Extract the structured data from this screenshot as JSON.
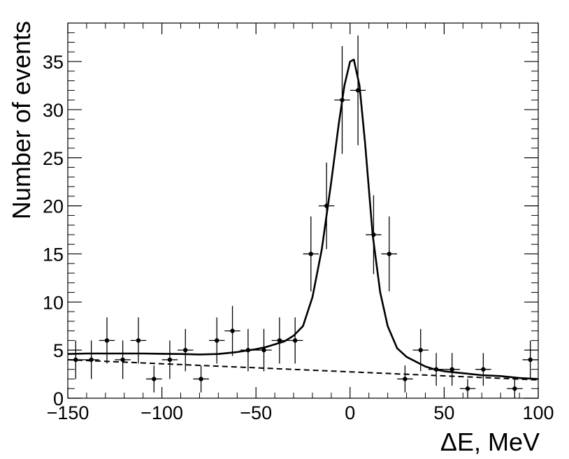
{
  "chart_data": {
    "type": "scatter",
    "xlabel": "ΔE, MeV",
    "ylabel": "Number of events",
    "xlim": [
      -150,
      100
    ],
    "ylim": [
      0,
      39
    ],
    "grid": false,
    "x_ticks": [
      -150,
      -100,
      -50,
      0,
      50,
      100
    ],
    "x_tick_labels": [
      "−150",
      "−100",
      "−50",
      "0",
      "50",
      "100"
    ],
    "y_ticks": [
      0,
      5,
      10,
      15,
      20,
      25,
      30,
      35
    ],
    "y_tick_labels": [
      "0",
      "5",
      "10",
      "15",
      "20",
      "25",
      "30",
      "35"
    ],
    "bin_half_width": 4.17,
    "points": [
      {
        "x": -145.8,
        "y": 4,
        "err_lo": 2.0,
        "err_hi": 2.0
      },
      {
        "x": -137.5,
        "y": 4,
        "err_lo": 2.0,
        "err_hi": 2.0
      },
      {
        "x": -129.2,
        "y": 6,
        "err_lo": 2.4,
        "err_hi": 2.4
      },
      {
        "x": -120.8,
        "y": 4,
        "err_lo": 2.0,
        "err_hi": 2.0
      },
      {
        "x": -112.5,
        "y": 6,
        "err_lo": 2.4,
        "err_hi": 2.4
      },
      {
        "x": -104.2,
        "y": 2,
        "err_lo": 1.4,
        "err_hi": 1.4
      },
      {
        "x": -95.8,
        "y": 4,
        "err_lo": 2.0,
        "err_hi": 2.0
      },
      {
        "x": -87.5,
        "y": 5,
        "err_lo": 2.2,
        "err_hi": 2.2
      },
      {
        "x": -79.2,
        "y": 2,
        "err_lo": 1.4,
        "err_hi": 1.4
      },
      {
        "x": -70.8,
        "y": 6,
        "err_lo": 2.4,
        "err_hi": 2.4
      },
      {
        "x": -62.5,
        "y": 7,
        "err_lo": 2.6,
        "err_hi": 2.6
      },
      {
        "x": -54.2,
        "y": 5,
        "err_lo": 2.2,
        "err_hi": 2.2
      },
      {
        "x": -45.8,
        "y": 5,
        "err_lo": 2.2,
        "err_hi": 2.2
      },
      {
        "x": -37.5,
        "y": 6,
        "err_lo": 2.4,
        "err_hi": 2.4
      },
      {
        "x": -29.2,
        "y": 6,
        "err_lo": 2.4,
        "err_hi": 2.4
      },
      {
        "x": -20.8,
        "y": 15,
        "err_lo": 3.9,
        "err_hi": 3.9
      },
      {
        "x": -12.5,
        "y": 20,
        "err_lo": 4.5,
        "err_hi": 4.5
      },
      {
        "x": -4.2,
        "y": 31,
        "err_lo": 5.6,
        "err_hi": 5.6
      },
      {
        "x": 4.2,
        "y": 32,
        "err_lo": 5.7,
        "err_hi": 5.7
      },
      {
        "x": 12.5,
        "y": 17,
        "err_lo": 4.1,
        "err_hi": 4.1
      },
      {
        "x": 20.8,
        "y": 15,
        "err_lo": 3.9,
        "err_hi": 3.9
      },
      {
        "x": 29.2,
        "y": 2,
        "err_lo": 1.4,
        "err_hi": 1.4
      },
      {
        "x": 37.5,
        "y": 5,
        "err_lo": 2.2,
        "err_hi": 2.2
      },
      {
        "x": 45.8,
        "y": 3,
        "err_lo": 1.7,
        "err_hi": 1.7
      },
      {
        "x": 54.2,
        "y": 3,
        "err_lo": 1.7,
        "err_hi": 1.7
      },
      {
        "x": 62.5,
        "y": 1,
        "err_lo": 1.0,
        "err_hi": 1.0
      },
      {
        "x": 70.8,
        "y": 3,
        "err_lo": 1.7,
        "err_hi": 1.7
      },
      {
        "x": 87.5,
        "y": 1,
        "err_lo": 1.0,
        "err_hi": 1.0
      },
      {
        "x": 95.8,
        "y": 4,
        "err_lo": 2.0,
        "err_hi": 2.0
      }
    ],
    "fit_curve": {
      "style": "solid",
      "x": [
        -150,
        -140,
        -130,
        -120,
        -110,
        -100,
        -90,
        -80,
        -70,
        -60,
        -50,
        -45,
        -40,
        -35,
        -30,
        -25,
        -20,
        -15,
        -10,
        -6,
        -3,
        0,
        2,
        5,
        8,
        12,
        16,
        20,
        25,
        30,
        35,
        40,
        45,
        50,
        60,
        70,
        80,
        90,
        100
      ],
      "y": [
        4.6,
        4.65,
        4.65,
        4.65,
        4.65,
        4.62,
        4.6,
        4.55,
        4.6,
        4.8,
        5.1,
        5.3,
        5.6,
        5.9,
        6.5,
        7.5,
        10.5,
        15.5,
        22.5,
        28.5,
        32.5,
        35.0,
        35.2,
        32.5,
        26.5,
        17.0,
        11.0,
        7.5,
        5.2,
        4.3,
        3.8,
        3.3,
        3.0,
        2.8,
        2.6,
        2.4,
        2.3,
        2.1,
        2.0
      ]
    },
    "background_curve": {
      "style": "dashed",
      "x": [
        -150,
        100
      ],
      "y": [
        4.0,
        1.9
      ]
    }
  }
}
